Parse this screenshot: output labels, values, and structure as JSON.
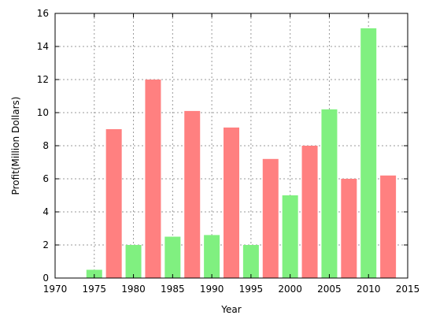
{
  "chart_data": {
    "type": "bar",
    "title": "",
    "xlabel": "Year",
    "ylabel": "Profit(Million Dollars)",
    "xlim": [
      1970,
      2015
    ],
    "ylim": [
      0,
      16
    ],
    "xticks": [
      1970,
      1975,
      1980,
      1985,
      1990,
      1995,
      2000,
      2005,
      2010,
      2015
    ],
    "yticks": [
      0,
      2,
      4,
      6,
      8,
      10,
      12,
      14,
      16
    ],
    "grid": true,
    "legend": "none",
    "series": [
      {
        "color": "#80f080",
        "x": [
          1975,
          1980,
          1985,
          1990,
          1995,
          2000,
          2005,
          2010
        ],
        "values": [
          0.5,
          2.0,
          2.5,
          2.6,
          2.0,
          5.0,
          10.2,
          15.1
        ]
      },
      {
        "color": "#ff8080",
        "x": [
          1977.5,
          1982.5,
          1987.5,
          1992.5,
          1997.5,
          2002.5,
          2007.5,
          2012.5
        ],
        "values": [
          9.0,
          12.0,
          10.1,
          9.1,
          7.2,
          8.0,
          6.0,
          6.2
        ]
      }
    ]
  }
}
